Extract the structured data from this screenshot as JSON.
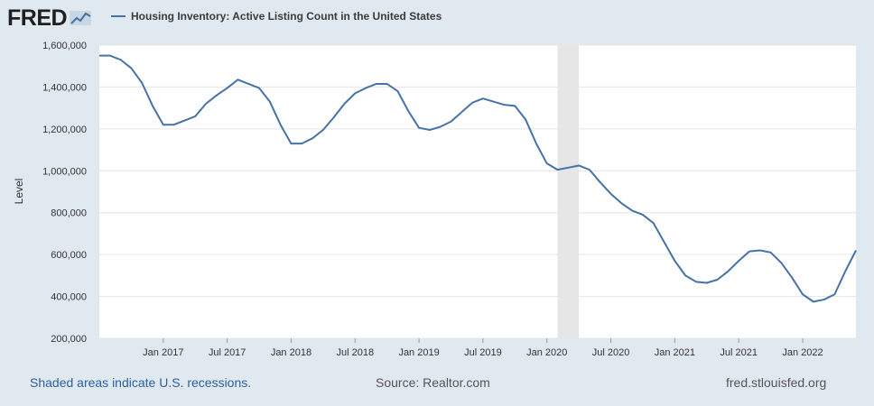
{
  "brand": {
    "logo_text": "FRED"
  },
  "footer": {
    "recession_note": "Shaded areas indicate U.S. recessions.",
    "source": "Source: Realtor.com",
    "site": "fred.stlouisfed.org"
  },
  "colors": {
    "line": "#4572a7",
    "recession": "#e6e6e6",
    "grid": "#e6e6e6",
    "background": "#e1e9f0"
  },
  "chart_data": {
    "type": "line",
    "title": "",
    "ylabel": "Level",
    "xlabel": "",
    "ylim": [
      200000,
      1600000
    ],
    "y_ticks": [
      200000,
      400000,
      600000,
      800000,
      1000000,
      1200000,
      1400000,
      1600000
    ],
    "y_tick_labels": [
      "200,000",
      "400,000",
      "600,000",
      "800,000",
      "1,000,000",
      "1,200,000",
      "1,400,000",
      "1,600,000"
    ],
    "x_tick_dates": [
      "2017-01",
      "2017-07",
      "2018-01",
      "2018-07",
      "2019-01",
      "2019-07",
      "2020-01",
      "2020-07",
      "2021-01",
      "2021-07",
      "2022-01"
    ],
    "x_tick_labels": [
      "Jan 2017",
      "Jul 2017",
      "Jan 2018",
      "Jul 2018",
      "Jan 2019",
      "Jul 2019",
      "Jan 2020",
      "Jul 2020",
      "Jan 2021",
      "Jul 2021",
      "Jan 2022"
    ],
    "xlim": [
      "2016-07",
      "2022-06"
    ],
    "recessions": [
      {
        "start": "2020-02",
        "end": "2020-04"
      }
    ],
    "legend": {
      "position": "top-left"
    },
    "grid": true,
    "series": [
      {
        "name": "Housing Inventory: Active Listing Count in the United States",
        "color": "#4572a7",
        "x": [
          "2016-07",
          "2016-08",
          "2016-09",
          "2016-10",
          "2016-11",
          "2016-12",
          "2017-01",
          "2017-02",
          "2017-03",
          "2017-04",
          "2017-05",
          "2017-06",
          "2017-07",
          "2017-08",
          "2017-09",
          "2017-10",
          "2017-11",
          "2017-12",
          "2018-01",
          "2018-02",
          "2018-03",
          "2018-04",
          "2018-05",
          "2018-06",
          "2018-07",
          "2018-08",
          "2018-09",
          "2018-10",
          "2018-11",
          "2018-12",
          "2019-01",
          "2019-02",
          "2019-03",
          "2019-04",
          "2019-05",
          "2019-06",
          "2019-07",
          "2019-08",
          "2019-09",
          "2019-10",
          "2019-11",
          "2019-12",
          "2020-01",
          "2020-02",
          "2020-03",
          "2020-04",
          "2020-05",
          "2020-06",
          "2020-07",
          "2020-08",
          "2020-09",
          "2020-10",
          "2020-11",
          "2020-12",
          "2021-01",
          "2021-02",
          "2021-03",
          "2021-04",
          "2021-05",
          "2021-06",
          "2021-07",
          "2021-08",
          "2021-09",
          "2021-10",
          "2021-11",
          "2021-12",
          "2022-01",
          "2022-02",
          "2022-03",
          "2022-04",
          "2022-05",
          "2022-06"
        ],
        "values": [
          1550000,
          1550000,
          1530000,
          1490000,
          1420000,
          1310000,
          1220000,
          1220000,
          1240000,
          1260000,
          1320000,
          1360000,
          1395000,
          1435000,
          1415000,
          1395000,
          1330000,
          1220000,
          1130000,
          1130000,
          1155000,
          1195000,
          1255000,
          1320000,
          1370000,
          1395000,
          1415000,
          1415000,
          1380000,
          1285000,
          1205000,
          1195000,
          1210000,
          1235000,
          1280000,
          1325000,
          1345000,
          1330000,
          1315000,
          1310000,
          1245000,
          1130000,
          1035000,
          1005000,
          1015000,
          1025000,
          1005000,
          945000,
          890000,
          845000,
          810000,
          790000,
          750000,
          660000,
          570000,
          500000,
          470000,
          465000,
          480000,
          520000,
          570000,
          615000,
          620000,
          610000,
          560000,
          490000,
          410000,
          375000,
          385000,
          410000,
          520000,
          620000
        ]
      }
    ]
  }
}
